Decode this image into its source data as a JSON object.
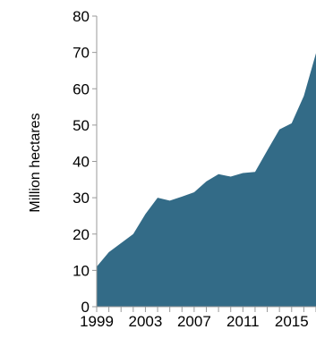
{
  "chart_data": {
    "type": "area",
    "title": "",
    "xlabel": "",
    "ylabel": "Million hectares",
    "x": [
      1999,
      2000,
      2001,
      2002,
      2003,
      2004,
      2005,
      2006,
      2007,
      2008,
      2009,
      2010,
      2011,
      2012,
      2013,
      2014,
      2015,
      2016,
      2017
    ],
    "series": [
      {
        "values": [
          11,
          15,
          17.5,
          20,
          25.5,
          30,
          29.2,
          30.3,
          31.5,
          34.5,
          36.5,
          35.8,
          36.8,
          37.1,
          43,
          48.8,
          50.5,
          58,
          69.8
        ],
        "color": "#336b87"
      }
    ],
    "xlim": [
      1999,
      2017
    ],
    "ylim": [
      0,
      80
    ],
    "yticks": [
      0,
      10,
      20,
      30,
      40,
      50,
      60,
      70,
      80
    ],
    "xtick_labels": [
      "1999",
      "2003",
      "2007",
      "2011",
      "2015"
    ],
    "grid": false,
    "legend": "none",
    "colors": {
      "area": "#336b87",
      "axis": "#999999",
      "text": "#000000"
    }
  }
}
